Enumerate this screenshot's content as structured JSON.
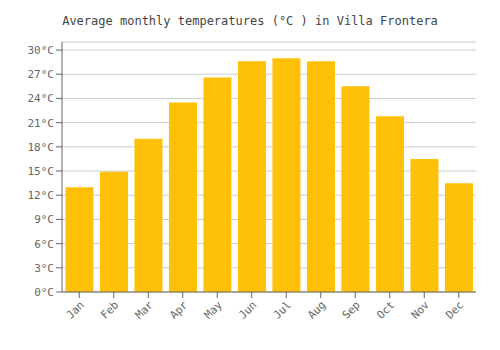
{
  "chart_data": {
    "type": "bar",
    "title": "Average monthly temperatures (°C ) in Villa Frontera",
    "categories": [
      "Jan",
      "Feb",
      "Mar",
      "Apr",
      "May",
      "Jun",
      "Jul",
      "Aug",
      "Sep",
      "Oct",
      "Nov",
      "Dec"
    ],
    "values": [
      13.0,
      14.9,
      19.0,
      23.5,
      26.6,
      28.6,
      29.0,
      28.6,
      25.5,
      21.8,
      16.5,
      13.5
    ],
    "color": "#FFC107",
    "ylim": [
      0,
      31
    ],
    "yticks": [
      {
        "value": 0,
        "label": "0°C"
      },
      {
        "value": 3,
        "label": "3°C"
      },
      {
        "value": 6,
        "label": "6°C"
      },
      {
        "value": 9,
        "label": "9°C"
      },
      {
        "value": 12,
        "label": "12°C"
      },
      {
        "value": 15,
        "label": "15°C"
      },
      {
        "value": 18,
        "label": "18°C"
      },
      {
        "value": 21,
        "label": "21°C"
      },
      {
        "value": 24,
        "label": "24°C"
      },
      {
        "value": 27,
        "label": "27°C"
      },
      {
        "value": 30,
        "label": "30°C"
      }
    ],
    "grid": true
  }
}
